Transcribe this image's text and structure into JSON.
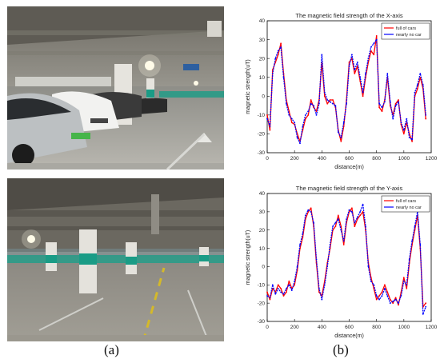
{
  "panel_labels": {
    "a": "(a)",
    "b": "(b)"
  },
  "photos": [
    {
      "scene": "underground parking garage full of parked cars"
    },
    {
      "scene": "underground parking garage with nearly no cars"
    }
  ],
  "colors": {
    "full_of_cars": "#ff0000",
    "nearly_no_car": "#0000ff"
  },
  "chart_data": [
    {
      "type": "line",
      "title": "The magnetic field strength of the X-axis",
      "xlabel": "distance(m)",
      "ylabel": "magnetic strength(uT)",
      "xlim": [
        0,
        1200
      ],
      "ylim": [
        -30,
        40
      ],
      "xticks": [
        "0",
        "200",
        "400",
        "600",
        "800",
        "1000",
        "1200"
      ],
      "yticks": [
        "40",
        "30",
        "20",
        "10",
        "0",
        "-10",
        "-20",
        "-30"
      ],
      "grid": false,
      "legend_position": "top-right",
      "series": [
        {
          "name": "full of cars",
          "color": "#ff0000",
          "x": [
            0,
            20,
            40,
            60,
            80,
            100,
            120,
            140,
            160,
            180,
            200,
            220,
            240,
            260,
            280,
            300,
            320,
            340,
            360,
            380,
            400,
            420,
            440,
            460,
            480,
            500,
            520,
            540,
            560,
            580,
            600,
            620,
            640,
            660,
            680,
            700,
            720,
            740,
            760,
            780,
            800,
            820,
            840,
            860,
            880,
            900,
            920,
            940,
            960,
            980,
            1000,
            1020,
            1040,
            1060,
            1080,
            1100,
            1120,
            1140,
            1160
          ],
          "y": [
            -10,
            -18,
            14,
            18,
            22,
            28,
            12,
            -2,
            -8,
            -14,
            -15,
            -20,
            -24,
            -18,
            -12,
            -10,
            -2,
            -6,
            -8,
            -2,
            18,
            0,
            -4,
            -2,
            -2,
            -6,
            -18,
            -24,
            -16,
            -2,
            18,
            20,
            12,
            16,
            8,
            0,
            10,
            18,
            24,
            22,
            32,
            -6,
            -8,
            -2,
            10,
            -5,
            -10,
            -4,
            -2,
            -15,
            -20,
            -14,
            -20,
            -24,
            0,
            4,
            10,
            4,
            -12
          ]
        },
        {
          "name": "nearly no car",
          "color": "#0000ff",
          "x": [
            0,
            20,
            40,
            60,
            80,
            100,
            120,
            140,
            160,
            180,
            200,
            220,
            240,
            260,
            280,
            300,
            320,
            340,
            360,
            380,
            400,
            420,
            440,
            460,
            480,
            500,
            520,
            540,
            560,
            580,
            600,
            620,
            640,
            660,
            680,
            700,
            720,
            740,
            760,
            780,
            800,
            820,
            840,
            860,
            880,
            900,
            920,
            940,
            960,
            980,
            1000,
            1020,
            1040,
            1060,
            1080,
            1100,
            1120,
            1140,
            1160
          ],
          "y": [
            -12,
            -16,
            12,
            20,
            24,
            26,
            10,
            -4,
            -10,
            -12,
            -14,
            -22,
            -25,
            -16,
            -10,
            -8,
            -4,
            -5,
            -10,
            -4,
            22,
            2,
            -2,
            -3,
            -4,
            -5,
            -19,
            -22,
            -14,
            -4,
            16,
            22,
            14,
            18,
            10,
            2,
            12,
            20,
            26,
            28,
            30,
            -4,
            -6,
            -3,
            12,
            -3,
            -12,
            -5,
            -3,
            -14,
            -18,
            -12,
            -22,
            -23,
            2,
            6,
            12,
            6,
            -10
          ]
        }
      ]
    },
    {
      "type": "line",
      "title": "The magnetic field strength of the Y-axis",
      "xlabel": "distance(m)",
      "ylabel": "magnetic strength(uT)",
      "xlim": [
        0,
        1200
      ],
      "ylim": [
        -30,
        40
      ],
      "xticks": [
        "0",
        "200",
        "400",
        "600",
        "800",
        "1000",
        "1200"
      ],
      "yticks": [
        "40",
        "30",
        "20",
        "10",
        "0",
        "-10",
        "-20",
        "-30"
      ],
      "grid": false,
      "legend_position": "top-right",
      "series": [
        {
          "name": "full of cars",
          "color": "#ff0000",
          "x": [
            0,
            20,
            40,
            60,
            80,
            100,
            120,
            140,
            160,
            180,
            200,
            220,
            240,
            260,
            280,
            300,
            320,
            340,
            360,
            380,
            400,
            420,
            440,
            460,
            480,
            500,
            520,
            540,
            560,
            580,
            600,
            620,
            640,
            660,
            680,
            700,
            720,
            740,
            760,
            780,
            800,
            820,
            840,
            860,
            880,
            900,
            920,
            940,
            960,
            980,
            1000,
            1020,
            1040,
            1060,
            1080,
            1100,
            1120,
            1140,
            1160
          ],
          "y": [
            -14,
            -18,
            -12,
            -14,
            -10,
            -12,
            -16,
            -14,
            -8,
            -12,
            -10,
            -2,
            10,
            16,
            26,
            30,
            32,
            22,
            2,
            -14,
            -16,
            -8,
            2,
            10,
            20,
            22,
            28,
            22,
            12,
            24,
            30,
            32,
            22,
            26,
            28,
            30,
            20,
            2,
            -6,
            -12,
            -18,
            -16,
            -14,
            -10,
            -14,
            -18,
            -20,
            -17,
            -21,
            -14,
            -6,
            -12,
            2,
            12,
            20,
            28,
            10,
            -22,
            -20
          ]
        },
        {
          "name": "nearly no car",
          "color": "#0000ff",
          "x": [
            0,
            20,
            40,
            60,
            80,
            100,
            120,
            140,
            160,
            180,
            200,
            220,
            240,
            260,
            280,
            300,
            320,
            340,
            360,
            380,
            400,
            420,
            440,
            460,
            480,
            500,
            520,
            540,
            560,
            580,
            600,
            620,
            640,
            660,
            680,
            700,
            720,
            740,
            760,
            780,
            800,
            820,
            840,
            860,
            880,
            900,
            920,
            940,
            960,
            980,
            1000,
            1020,
            1040,
            1060,
            1080,
            1100,
            1120,
            1140,
            1160
          ],
          "y": [
            -16,
            -17,
            -10,
            -15,
            -12,
            -14,
            -15,
            -12,
            -10,
            -13,
            -8,
            0,
            12,
            18,
            28,
            31,
            30,
            24,
            4,
            -12,
            -18,
            -10,
            0,
            12,
            22,
            24,
            26,
            20,
            14,
            26,
            31,
            30,
            24,
            27,
            30,
            34,
            22,
            0,
            -8,
            -10,
            -16,
            -18,
            -16,
            -12,
            -16,
            -20,
            -19,
            -18,
            -20,
            -16,
            -8,
            -10,
            4,
            14,
            22,
            30,
            12,
            -26,
            -22
          ]
        }
      ]
    }
  ]
}
